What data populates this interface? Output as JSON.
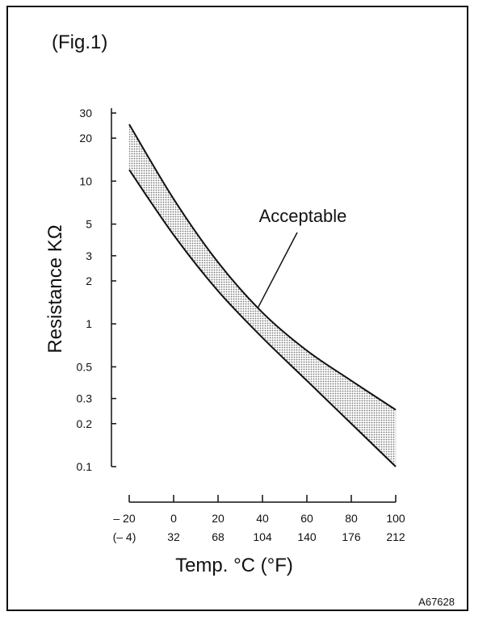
{
  "figure_label": "(Fig.1)",
  "figure_code": "A67628",
  "chart_data": {
    "type": "area",
    "title": "",
    "ylabel": "Resistance KΩ",
    "xlabel": "Temp. °C (°F)",
    "yscale": "log",
    "ylim": [
      0.1,
      30
    ],
    "xlim": [
      -20,
      100
    ],
    "y_ticks": [
      0.1,
      0.2,
      0.3,
      0.5,
      1,
      2,
      3,
      5,
      10,
      20,
      30
    ],
    "y_tick_labels": [
      "0.1",
      "0.2",
      "0.3",
      "0.5",
      "1",
      "2",
      "3",
      "5",
      "10",
      "20",
      "30"
    ],
    "x_ticks_c": [
      -20,
      0,
      20,
      40,
      60,
      80,
      100
    ],
    "x_tick_labels_c": [
      "– 20",
      "0",
      "20",
      "40",
      "60",
      "80",
      "100"
    ],
    "x_tick_labels_f": [
      "(– 4)",
      "32",
      "68",
      "104",
      "140",
      "176",
      "212"
    ],
    "annotation": "Acceptable",
    "annotation_target": {
      "x": 38,
      "y": 1.3
    },
    "band_fill": "#b8b8b8",
    "series": [
      {
        "values": [
          25,
          7.5,
          2.7,
          1.2,
          0.65,
          0.4,
          0.25
        ]
      },
      {
        "values": [
          12,
          4.2,
          1.7,
          0.8,
          0.4,
          0.2,
          0.1
        ]
      }
    ],
    "x": [
      -20,
      0,
      20,
      40,
      60,
      80,
      100
    ]
  }
}
